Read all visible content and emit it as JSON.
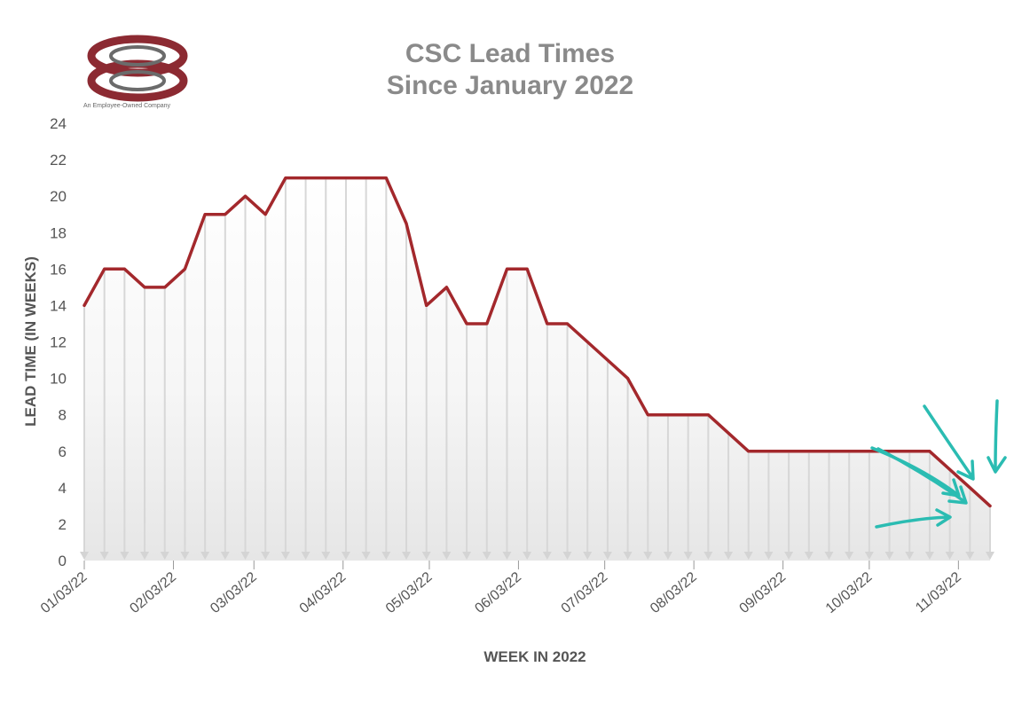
{
  "logo": {
    "letters": "CSC",
    "tagline": "An Employee-Owned Company",
    "color": "#8c2a32"
  },
  "chart_data": {
    "type": "area",
    "title": "CSC Lead Times",
    "subtitle": "Since January 2022",
    "xlabel": "WEEK IN 2022",
    "ylabel": "LEAD TIME  (IN WEEKS)",
    "ylim": [
      0,
      24
    ],
    "y_ticks": [
      0,
      2,
      4,
      6,
      8,
      10,
      12,
      14,
      16,
      18,
      20,
      22,
      24
    ],
    "x_tick_labels": [
      "01/03/22",
      "02/03/22",
      "03/03/22",
      "04/03/22",
      "05/03/22",
      "06/03/22",
      "07/03/22",
      "08/03/22",
      "09/03/22",
      "10/03/22",
      "11/03/22"
    ],
    "x_tick_dates": [
      "2022-01-03",
      "2022-02-03",
      "2022-03-03",
      "2022-04-03",
      "2022-05-03",
      "2022-06-03",
      "2022-07-03",
      "2022-08-03",
      "2022-09-03",
      "2022-10-03",
      "2022-11-03"
    ],
    "x_range": [
      "2022-01-03",
      "2022-11-14"
    ],
    "grid": "vertical drop lines at each weekly point",
    "line_color": "#a3282c",
    "series": [
      {
        "x": [
          "2022-01-03",
          "2022-01-10",
          "2022-01-17",
          "2022-01-24",
          "2022-01-31",
          "2022-02-07",
          "2022-02-14",
          "2022-02-21",
          "2022-02-28",
          "2022-03-07",
          "2022-03-14",
          "2022-03-21",
          "2022-03-28",
          "2022-04-04",
          "2022-04-11",
          "2022-04-18",
          "2022-04-25",
          "2022-05-02",
          "2022-05-09",
          "2022-05-16",
          "2022-05-23",
          "2022-05-30",
          "2022-06-06",
          "2022-06-13",
          "2022-06-20",
          "2022-06-27",
          "2022-07-04",
          "2022-07-11",
          "2022-07-18",
          "2022-07-25",
          "2022-08-01",
          "2022-08-08",
          "2022-08-15",
          "2022-08-22",
          "2022-08-29",
          "2022-09-05",
          "2022-09-12",
          "2022-09-19",
          "2022-09-26",
          "2022-10-03",
          "2022-10-10",
          "2022-10-17",
          "2022-10-24",
          "2022-10-31",
          "2022-11-07",
          "2022-11-14"
        ],
        "values": [
          14,
          16,
          16,
          15,
          15,
          16,
          19,
          19,
          20,
          19,
          21,
          21,
          21,
          21,
          21,
          21,
          18.5,
          14,
          15,
          13,
          13,
          16,
          16,
          13,
          13,
          12,
          11,
          10,
          8,
          8,
          8,
          8,
          7,
          6,
          6,
          6,
          6,
          6,
          6,
          6,
          6,
          6,
          6,
          5,
          4,
          3
        ]
      }
    ]
  },
  "annotations": {
    "arrow_color": "#2bbcb2",
    "arrow_count": 5
  }
}
